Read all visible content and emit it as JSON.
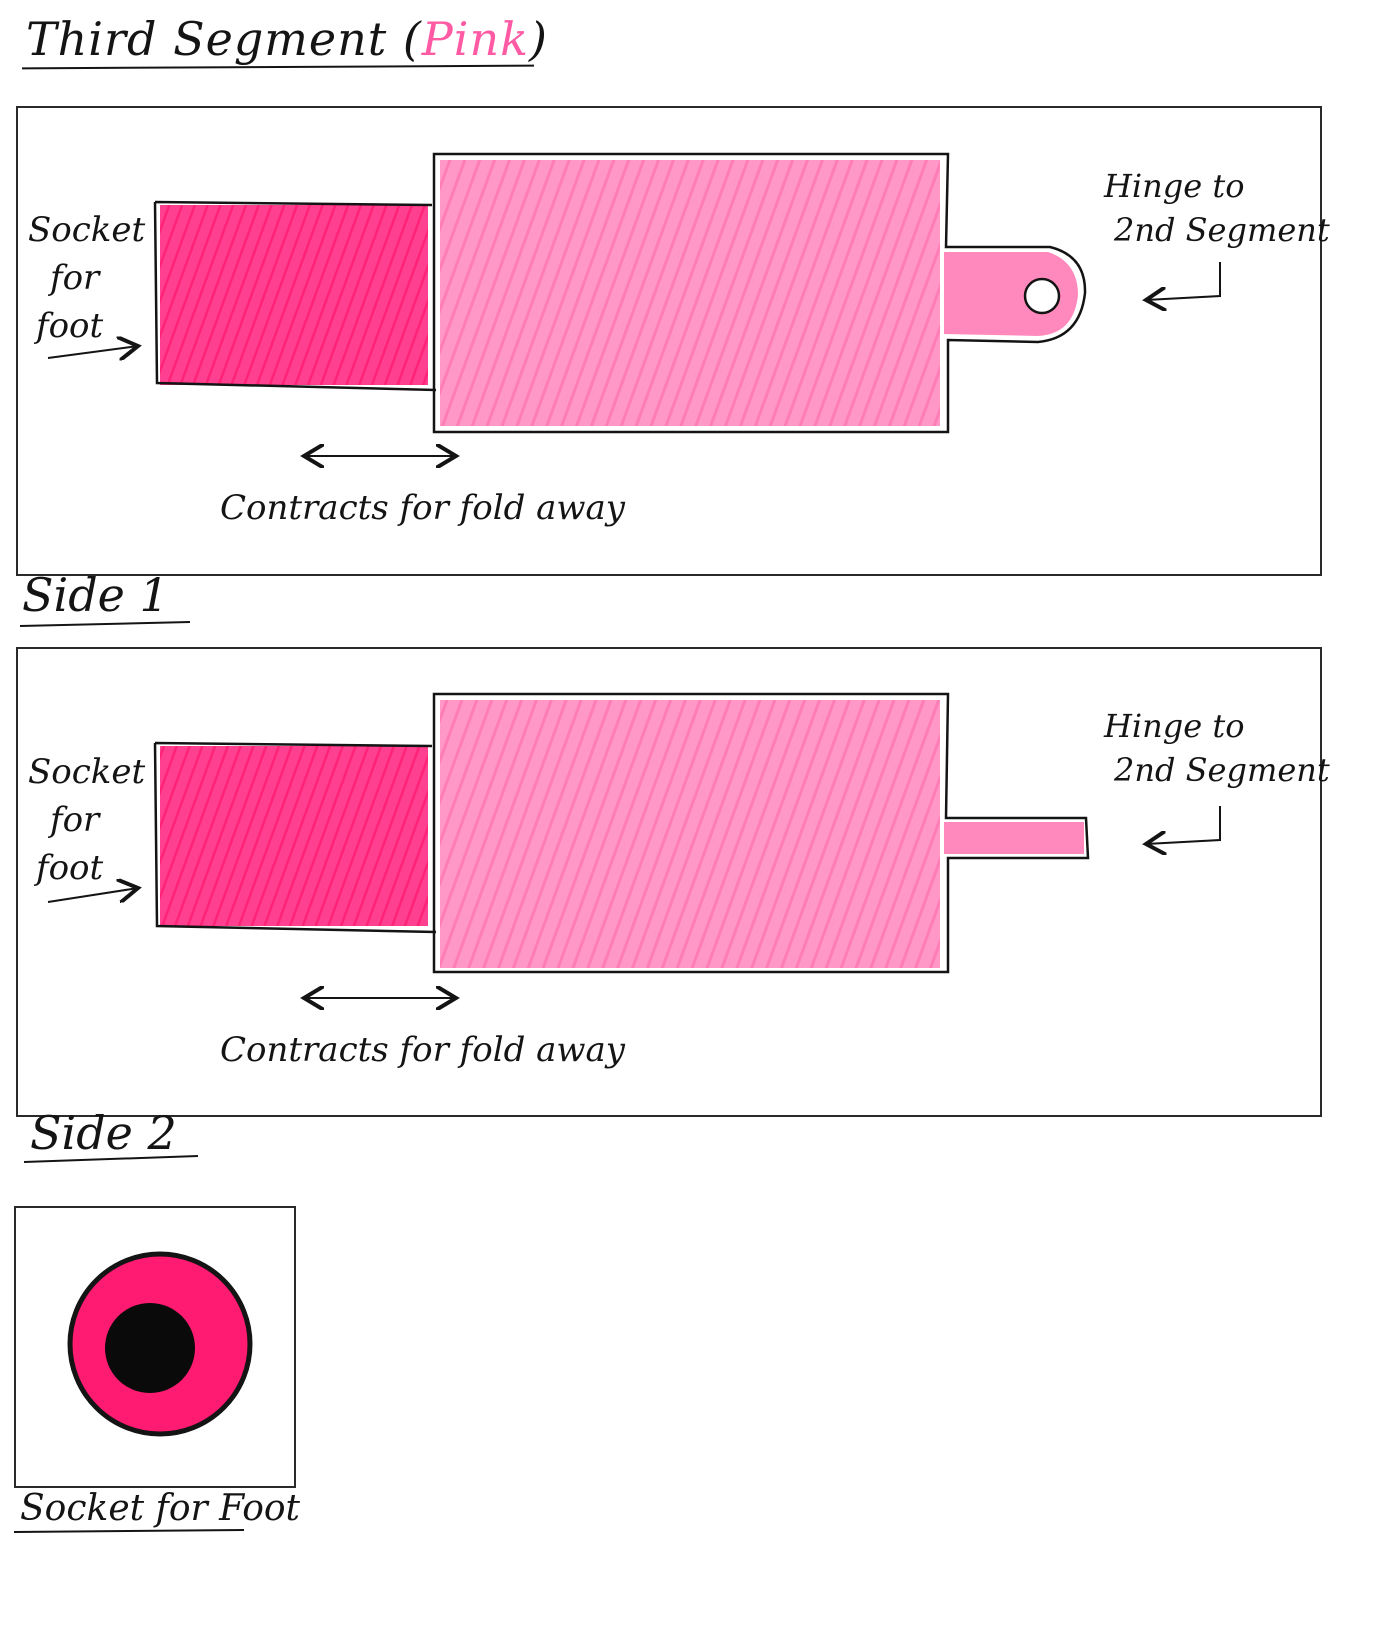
{
  "title": {
    "text": "Third Segment (",
    "highlight": "Pink",
    "suffix": ")"
  },
  "colors": {
    "light_pink": "#ff7cb6",
    "dark_pink": "#ff1a72",
    "ink": "#141414",
    "pink_label": "#ff5aa4"
  },
  "side1": {
    "caption": "Side 1",
    "socket_label": [
      "Socket",
      "for",
      "foot"
    ],
    "hinge_label": [
      "Hinge to",
      "2nd Segment"
    ],
    "contract_label": "Contracts for fold away"
  },
  "side2": {
    "caption": "Side 2",
    "socket_label": [
      "Socket",
      "for",
      "foot"
    ],
    "hinge_label": [
      "Hinge to",
      "2nd Segment"
    ],
    "contract_label": "Contracts for fold away"
  },
  "end_view": {
    "caption": "Socket for Foot"
  }
}
